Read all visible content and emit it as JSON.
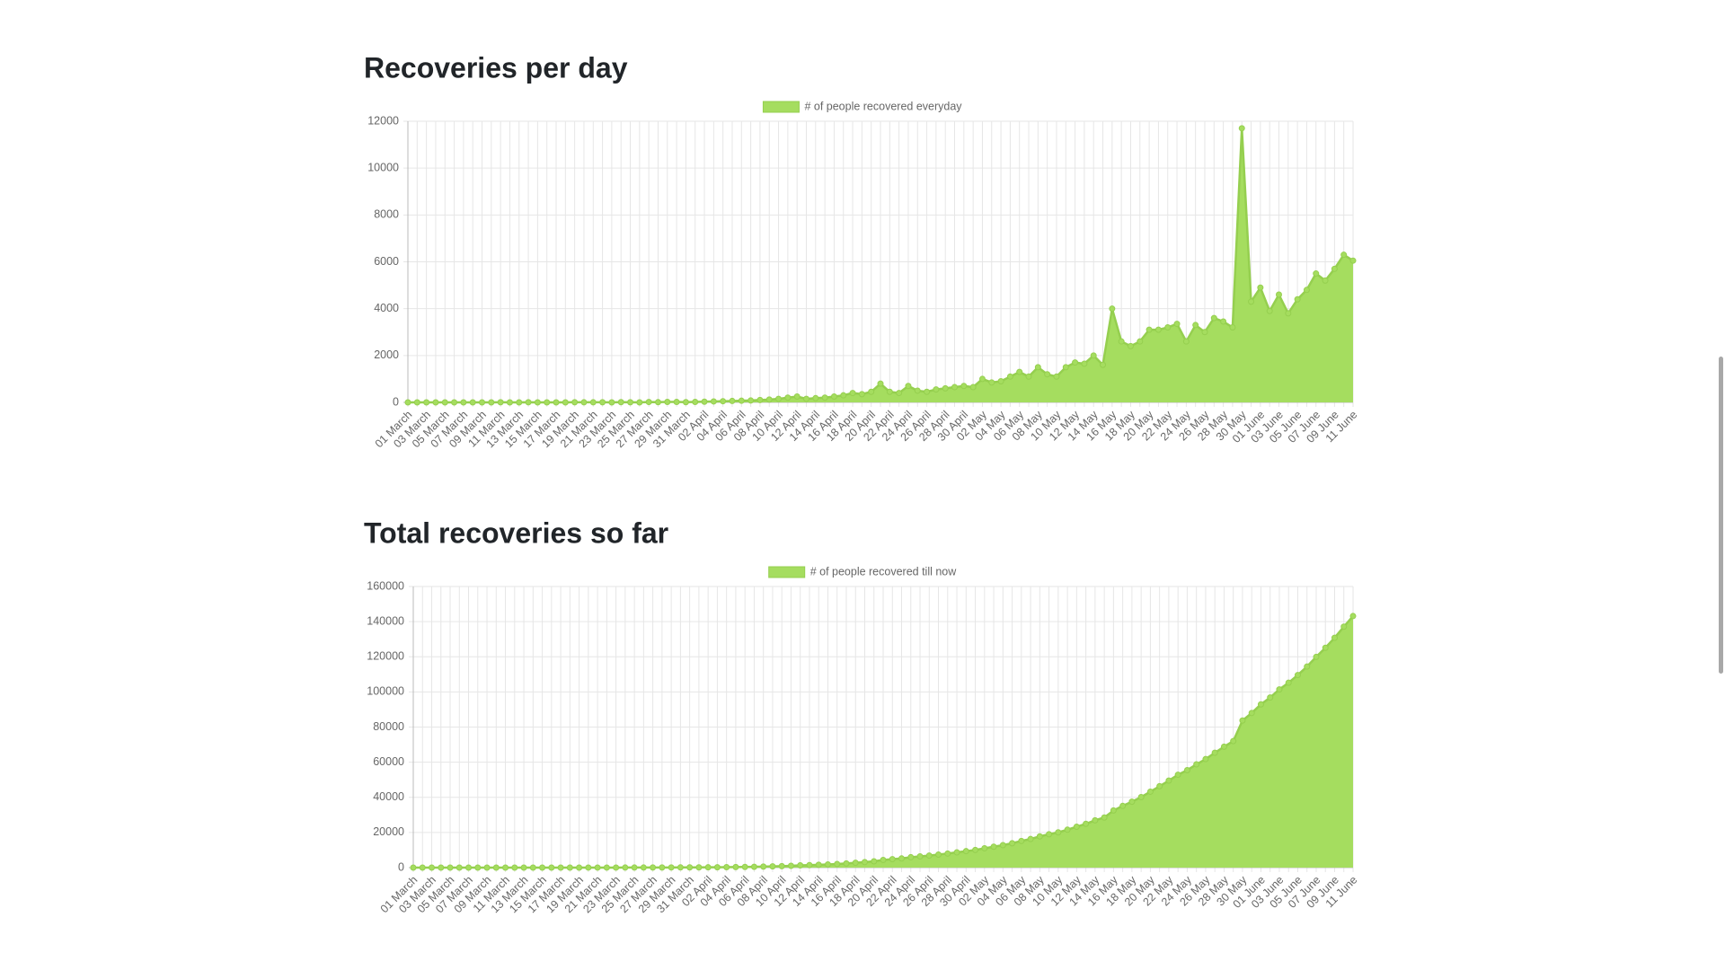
{
  "chart_data": [
    {
      "type": "area",
      "title": "Recoveries per day",
      "categories": [
        "01 March",
        null,
        "03 March",
        null,
        "05 March",
        null,
        "07 March",
        null,
        "09 March",
        null,
        "11 March",
        null,
        "13 March",
        null,
        "15 March",
        null,
        "17 March",
        null,
        "19 March",
        null,
        "21 March",
        null,
        "23 March",
        null,
        "25 March",
        null,
        "27 March",
        null,
        "29 March",
        null,
        "31 March",
        null,
        "02 April",
        null,
        "04 April",
        null,
        "06 April",
        null,
        "08 April",
        null,
        "10 April",
        null,
        "12 April",
        null,
        "14 April",
        null,
        "16 April",
        null,
        "18 April",
        null,
        "20 April",
        null,
        "22 April",
        null,
        "24 April",
        null,
        "26 April",
        null,
        "28 April",
        null,
        "30 April",
        null,
        "02 May",
        null,
        "04 May",
        null,
        "06 May",
        null,
        "08 May",
        null,
        "10 May",
        null,
        "12 May",
        null,
        "14 May",
        null,
        "16 May",
        null,
        "18 May",
        null,
        "20 May",
        null,
        "22 May",
        null,
        "24 May",
        null,
        "26 May",
        null,
        "28 May",
        null,
        "30 May",
        null,
        "01 June",
        null,
        "03 June",
        null,
        "05 June",
        null,
        "07 June",
        null,
        "09 June",
        null,
        "11 June"
      ],
      "series": [
        {
          "name": "# of people recovered everyday",
          "color": "#a5dd5f",
          "values": [
            0,
            0,
            0,
            0,
            0,
            0,
            0,
            0,
            0,
            0,
            4,
            0,
            0,
            6,
            0,
            0,
            1,
            1,
            5,
            3,
            3,
            5,
            1,
            10,
            5,
            0,
            16,
            8,
            20,
            17,
            11,
            20,
            30,
            40,
            50,
            60,
            70,
            80,
            100,
            120,
            150,
            200,
            250,
            150,
            180,
            200,
            250,
            300,
            400,
            350,
            450,
            800,
            450,
            400,
            700,
            500,
            450,
            550,
            600,
            650,
            700,
            650,
            1000,
            850,
            900,
            1100,
            1300,
            1100,
            1500,
            1200,
            1100,
            1500,
            1700,
            1650,
            2000,
            1600,
            4000,
            2600,
            2400,
            2600,
            3100,
            3100,
            3200,
            3350,
            2600,
            3300,
            3000,
            3600,
            3450,
            3200,
            11700,
            4300,
            4900,
            3900,
            4600,
            3800,
            4400,
            4800,
            5500,
            5200,
            5700,
            6300,
            6050
          ]
        }
      ],
      "ylim": [
        0,
        12000
      ],
      "yticks": [
        0,
        2000,
        4000,
        6000,
        8000,
        10000,
        12000
      ],
      "grid": true
    },
    {
      "type": "area",
      "title": "Total recoveries so far",
      "categories": [
        "01 March",
        null,
        "03 March",
        null,
        "05 March",
        null,
        "07 March",
        null,
        "09 March",
        null,
        "11 March",
        null,
        "13 March",
        null,
        "15 March",
        null,
        "17 March",
        null,
        "19 March",
        null,
        "21 March",
        null,
        "23 March",
        null,
        "25 March",
        null,
        "27 March",
        null,
        "29 March",
        null,
        "31 March",
        null,
        "02 April",
        null,
        "04 April",
        null,
        "06 April",
        null,
        "08 April",
        null,
        "10 April",
        null,
        "12 April",
        null,
        "14 April",
        null,
        "16 April",
        null,
        "18 April",
        null,
        "20 April",
        null,
        "22 April",
        null,
        "24 April",
        null,
        "26 April",
        null,
        "28 April",
        null,
        "30 April",
        null,
        "02 May",
        null,
        "04 May",
        null,
        "06 May",
        null,
        "08 May",
        null,
        "10 May",
        null,
        "12 May",
        null,
        "14 May",
        null,
        "16 May",
        null,
        "18 May",
        null,
        "20 May",
        null,
        "22 May",
        null,
        "24 May",
        null,
        "26 May",
        null,
        "28 May",
        null,
        "30 May",
        null,
        "01 June",
        null,
        "03 June",
        null,
        "05 June",
        null,
        "07 June",
        null,
        "09 June",
        null,
        "11 June"
      ],
      "series": [
        {
          "name": "# of people recovered till now",
          "color": "#a5dd5f",
          "values": [
            0,
            0,
            0,
            0,
            0,
            0,
            0,
            0,
            0,
            0,
            4,
            4,
            4,
            10,
            10,
            10,
            11,
            12,
            17,
            20,
            23,
            28,
            29,
            39,
            44,
            44,
            60,
            68,
            88,
            105,
            116,
            136,
            166,
            206,
            256,
            316,
            386,
            466,
            566,
            686,
            836,
            1036,
            1286,
            1436,
            1616,
            1816,
            2066,
            2366,
            2766,
            3116,
            3566,
            4366,
            4816,
            5216,
            5916,
            6416,
            6866,
            7416,
            8016,
            8666,
            9366,
            10016,
            11016,
            11866,
            12766,
            13866,
            15166,
            16266,
            17766,
            18966,
            20066,
            21566,
            23266,
            24916,
            26916,
            28516,
            32516,
            35116,
            37516,
            40116,
            43216,
            46316,
            49516,
            52866,
            55466,
            58766,
            61766,
            65366,
            68816,
            72016,
            83716,
            88016,
            92916,
            96816,
            101416,
            105216,
            109616,
            114416,
            119916,
            125116,
            130816,
            137116,
            143166
          ]
        }
      ],
      "ylim": [
        0,
        160000
      ],
      "yticks": [
        0,
        20000,
        40000,
        60000,
        80000,
        100000,
        120000,
        140000,
        160000
      ],
      "grid": true
    }
  ]
}
